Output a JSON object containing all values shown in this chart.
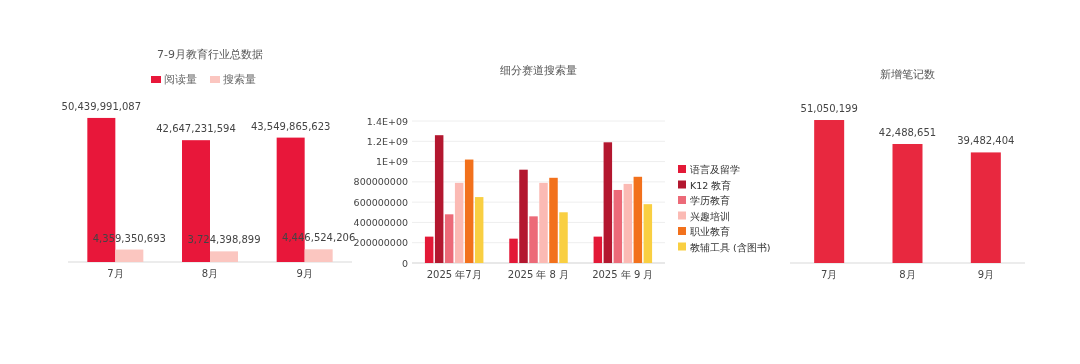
{
  "chart_data": [
    {
      "type": "bar",
      "title": "7-9月教育行业总数据",
      "categories": [
        "7月",
        "8月",
        "9月"
      ],
      "legend": "top",
      "data_labels": true,
      "series": [
        {
          "name": "阅读量",
          "color": "#e8173a",
          "values": [
            50439991087,
            42647231594,
            43549865623
          ],
          "value_labels": [
            "50,439,991,087",
            "42,647,231,594",
            "43,549,865,623"
          ]
        },
        {
          "name": "搜索量",
          "color": "#fbc6c0",
          "values": [
            4359350693,
            3724398899,
            4446524206
          ],
          "value_labels": [
            "4,359,350,693",
            "3,724,398,899",
            "4,446,524,206"
          ]
        }
      ]
    },
    {
      "type": "bar",
      "title": "细分赛道搜索量",
      "categories": [
        "2025 年7月",
        "2025 年 8 月",
        "2025 年 9 月"
      ],
      "legend": "right",
      "grid": "y",
      "ylim": [
        0,
        1400000000
      ],
      "yticks": [
        0,
        200000000,
        400000000,
        600000000,
        800000000,
        {
          "value": 1000000000,
          "label": "1E+09"
        },
        {
          "value": 1200000000,
          "label": "1.2E+09"
        },
        {
          "value": 1400000000,
          "label": "1.4E+09"
        }
      ],
      "series": [
        {
          "name": "语言及留学",
          "color": "#e31937",
          "values": [
            260000000,
            240000000,
            260000000
          ]
        },
        {
          "name": "K12 教育",
          "color": "#b3172f",
          "values": [
            1260000000,
            920000000,
            1190000000
          ]
        },
        {
          "name": "学历教育",
          "color": "#ec6a78",
          "values": [
            480000000,
            460000000,
            720000000
          ]
        },
        {
          "name": "兴趣培训",
          "color": "#fbbab4",
          "values": [
            790000000,
            790000000,
            780000000
          ]
        },
        {
          "name": "职业教育",
          "color": "#f2711c",
          "values": [
            1020000000,
            840000000,
            850000000
          ]
        },
        {
          "name": "教辅工具 (含图书)",
          "color": "#f9cf42",
          "values": [
            650000000,
            500000000,
            580000000
          ]
        }
      ]
    },
    {
      "type": "bar",
      "title": "新增笔记数",
      "categories": [
        "7月",
        "8月",
        "9月"
      ],
      "data_labels": true,
      "series": [
        {
          "color": "#e8283f",
          "values": [
            51050199,
            42488651,
            39482404
          ],
          "value_labels": [
            "51,050,199",
            "42,488,651",
            "39,482,404"
          ]
        }
      ]
    }
  ]
}
